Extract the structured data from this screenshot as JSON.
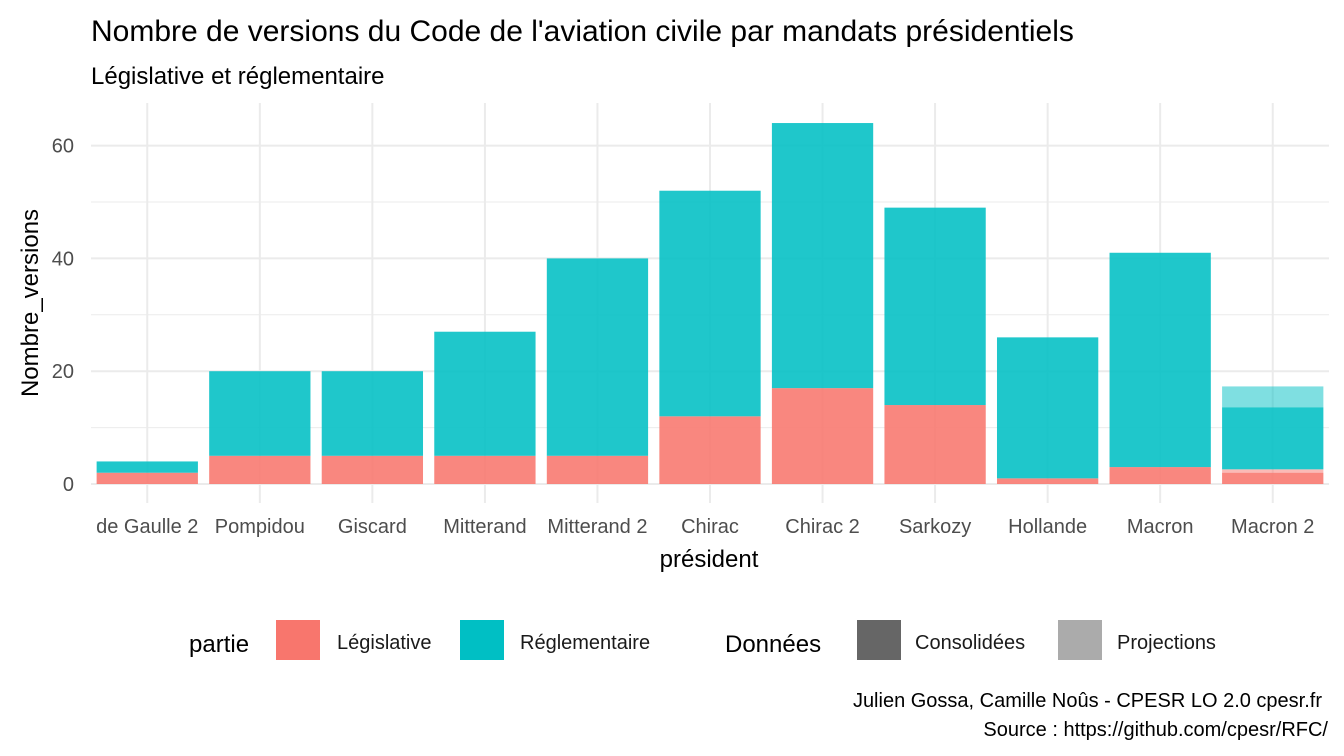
{
  "chart_data": {
    "type": "bar",
    "stacked": true,
    "title": "Nombre de versions du Code de l'aviation civile par mandats présidentiels",
    "subtitle": "Législative et réglementaire",
    "xlabel": "président",
    "ylabel": "Nombre_versions",
    "ylim": [
      0,
      65
    ],
    "yticks": [
      0,
      20,
      40,
      60
    ],
    "grid": true,
    "categories": [
      "de Gaulle 2",
      "Pompidou",
      "Giscard",
      "Mitterand",
      "Mitterand 2",
      "Chirac",
      "Chirac 2",
      "Sarkozy",
      "Hollande",
      "Macron",
      "Macron 2"
    ],
    "series": [
      {
        "name": "Législative",
        "data_kind": "Consolidées",
        "color": "#F8766D",
        "values": [
          2,
          5,
          5,
          5,
          5,
          12,
          17,
          14,
          1,
          3,
          2
        ]
      },
      {
        "name": "Législative",
        "data_kind": "Projections",
        "color": "#F8766D",
        "values": [
          0,
          0,
          0,
          0,
          0,
          0,
          0,
          0,
          0,
          0,
          0.6
        ]
      },
      {
        "name": "Réglementaire",
        "data_kind": "Consolidées",
        "color": "#00BFC4",
        "values": [
          2,
          15,
          15,
          22,
          35,
          40,
          47,
          35,
          25,
          38,
          11
        ]
      },
      {
        "name": "Réglementaire",
        "data_kind": "Projections",
        "color": "#00BFC4",
        "values": [
          0,
          0,
          0,
          0,
          0,
          0,
          0,
          0,
          0,
          0,
          3.7
        ]
      }
    ],
    "legend": {
      "position": "bottom",
      "fill_title": "partie",
      "fill_items": [
        {
          "label": "Législative",
          "color": "#F8766D"
        },
        {
          "label": "Réglementaire",
          "color": "#00BFC4"
        }
      ],
      "alpha_title": "Données",
      "alpha_items": [
        {
          "label": "Consolidées",
          "color": "#666666"
        },
        {
          "label": "Projections",
          "color": "#ABABAB"
        }
      ]
    },
    "caption_lines": [
      "Julien Gossa, Camille Noûs - CPESR LO 2.0 cpesr.fr",
      "Source : https://github.com/cpesr/RFC/"
    ]
  }
}
